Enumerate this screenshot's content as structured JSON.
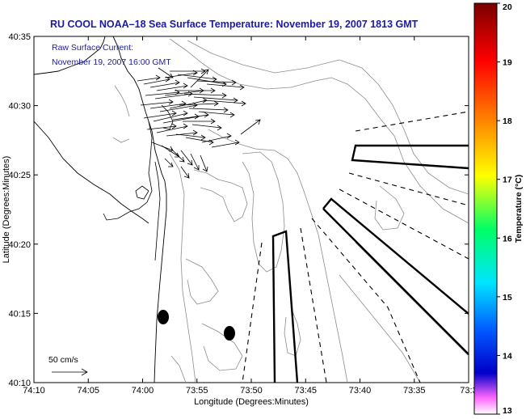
{
  "title": "RU COOL  NOAA–18  Sea Surface Temperature:  November 19, 2007 1813 GMT",
  "subtitle": [
    "Raw Surface Current:",
    "November 19, 2007 16:00 GMT"
  ],
  "x_axis": {
    "label": "Longitude (Degrees:Minutes)",
    "ticks": [
      "74:10",
      "74:05",
      "74:00",
      "73:55",
      "73:50",
      "73:45",
      "73:40",
      "73:35",
      "73:3"
    ]
  },
  "y_axis": {
    "label": "Latitude (Degrees:Minutes)",
    "ticks": [
      "40:35",
      "40:30",
      "40:25",
      "40:20",
      "40:15",
      "40:10"
    ]
  },
  "colorbar": {
    "label": "Temperature (°C)",
    "ticks": [
      "20",
      "19",
      "18",
      "17",
      "16",
      "15",
      "14",
      "13"
    ],
    "colors": [
      "#7a0000",
      "#ff0000",
      "#ff7f00",
      "#ffff00",
      "#00ff66",
      "#00e5ff",
      "#0055ff",
      "#0000c8",
      "#ff66ff",
      "#ffffff"
    ]
  },
  "scale": {
    "label": "50 cm/s"
  },
  "map": {
    "land_color": "#ffffff",
    "water_color": "#ffffff",
    "contour_color": "#8c8c8c",
    "marker_count": 2
  }
}
